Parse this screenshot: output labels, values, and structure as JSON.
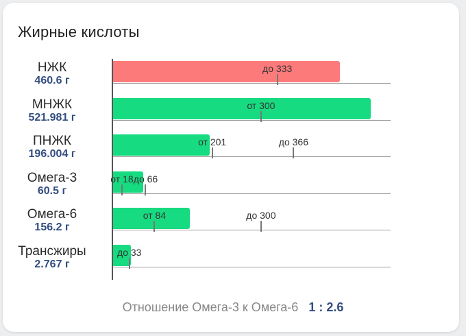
{
  "card": {
    "title": "Жирные кислоты"
  },
  "colors": {
    "over_limit": "#fd7a7b",
    "normal": "#17db80",
    "value_text": "#334d80"
  },
  "scale": {
    "max_grams": 560
  },
  "rows": [
    {
      "name": "НЖК",
      "value_text": "460.6 г",
      "grams": 460.6,
      "status": "over_limit",
      "markers": [
        {
          "label": "до 333",
          "at": 333
        }
      ]
    },
    {
      "name": "МНЖК",
      "value_text": "521.981 г",
      "grams": 521.981,
      "status": "normal",
      "markers": [
        {
          "label": "от 300",
          "at": 300
        }
      ]
    },
    {
      "name": "ПНЖК",
      "value_text": "196.004 г",
      "grams": 196.004,
      "status": "normal",
      "markers": [
        {
          "label": "от 201",
          "at": 201
        },
        {
          "label": "до 366",
          "at": 366
        }
      ]
    },
    {
      "name": "Омега-3",
      "value_text": "60.5 г",
      "grams": 60.5,
      "status": "normal",
      "markers": [
        {
          "label": "от 18",
          "at": 18
        },
        {
          "label": "до 66",
          "at": 66
        }
      ]
    },
    {
      "name": "Омега-6",
      "value_text": "156.2 г",
      "grams": 156.2,
      "status": "normal",
      "markers": [
        {
          "label": "от 84",
          "at": 84
        },
        {
          "label": "до 300",
          "at": 300
        }
      ]
    },
    {
      "name": "Трансжиры",
      "value_text": "2.767 г",
      "grams": 2.767,
      "status": "normal",
      "markers": [
        {
          "label": "до 33",
          "at": 33
        }
      ]
    }
  ],
  "footer": {
    "label": "Отношение Омега-3 к Омега-6",
    "ratio": "1 : 2.6"
  }
}
